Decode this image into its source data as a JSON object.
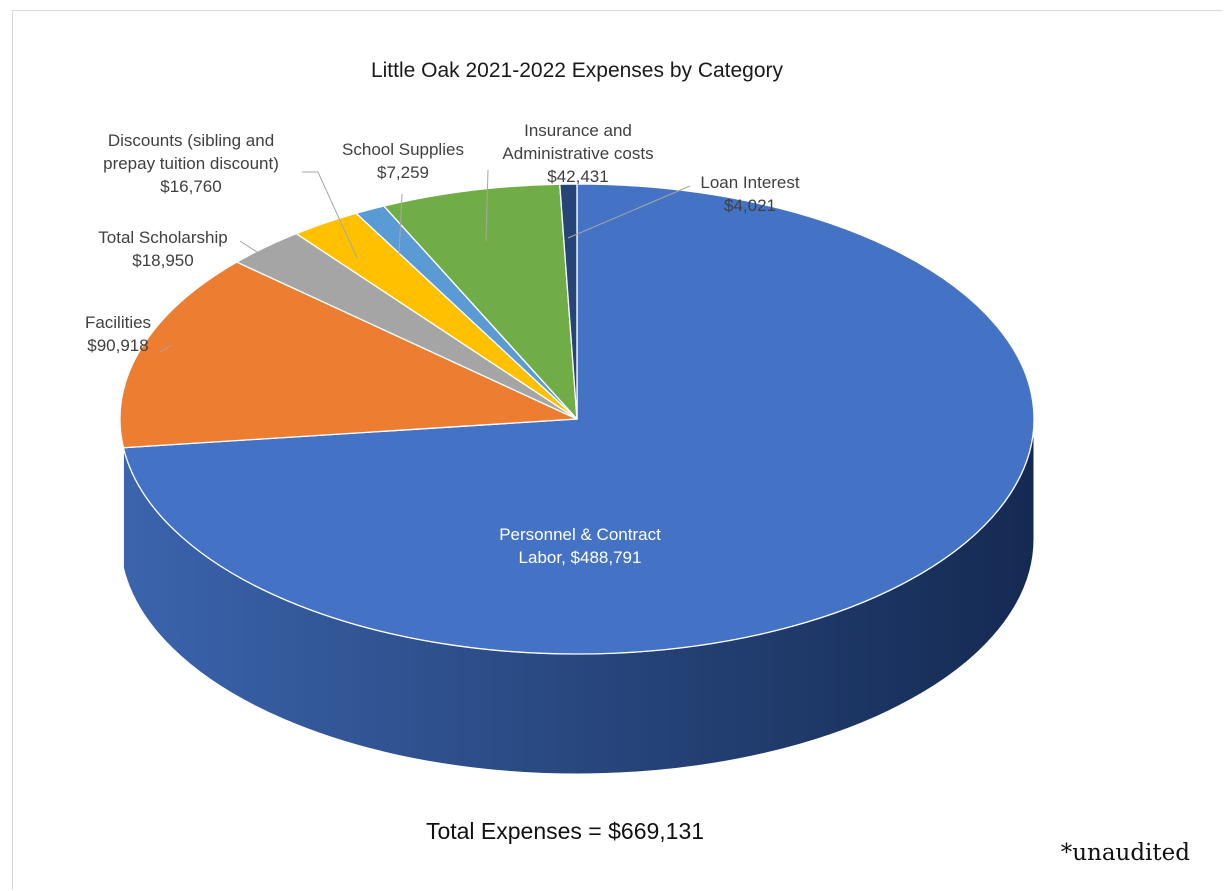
{
  "chart_data": {
    "type": "pie",
    "title": "Little Oak 2021-2022 Expenses by Category",
    "start_angle_deg": 0,
    "direction": "clockwise",
    "slices": [
      {
        "label_lines": [
          "Personnel & Contract",
          "Labor, $488,791"
        ],
        "value": 488791,
        "color": "#4472C4",
        "label_inside": true
      },
      {
        "label_lines": [
          "Facilities",
          "$90,918"
        ],
        "value": 90918,
        "color": "#ED7D31"
      },
      {
        "label_lines": [
          "Total Scholarship",
          "$18,950"
        ],
        "value": 18950,
        "color": "#A5A5A5"
      },
      {
        "label_lines": [
          "Discounts (sibling and",
          "prepay tuition discount)",
          "$16,760"
        ],
        "value": 16760,
        "color": "#FFC000"
      },
      {
        "label_lines": [
          "School Supplies",
          "$7,259"
        ],
        "value": 7259,
        "color": "#5B9BD5"
      },
      {
        "label_lines": [
          "Insurance and",
          "Administrative costs",
          "$42,431"
        ],
        "value": 42431,
        "color": "#70AD47"
      },
      {
        "label_lines": [
          "Loan Interest",
          "$4,021"
        ],
        "value": 4021,
        "color": "#264478"
      }
    ]
  },
  "total_text": "Total Expenses = $669,131",
  "footnote": "*unaudited"
}
